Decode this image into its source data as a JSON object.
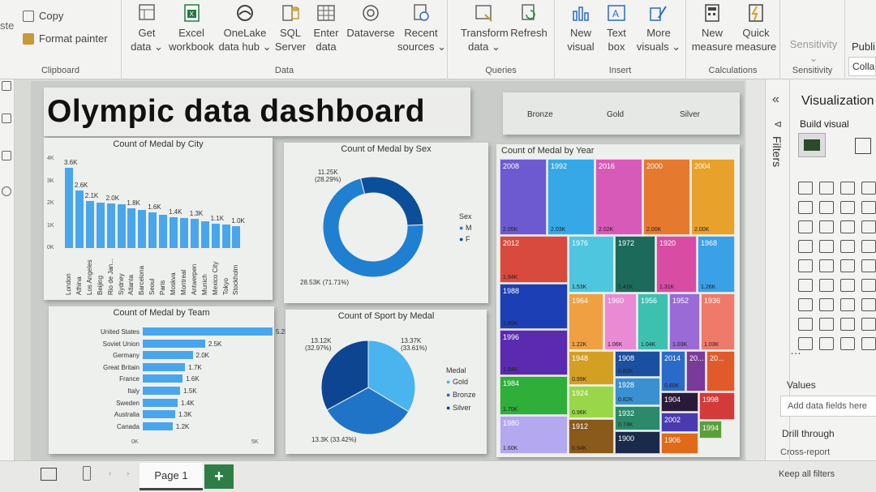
{
  "ribbon": {
    "clipboard": {
      "copy": "Copy",
      "format_painter": "Format painter",
      "label": "Clipboard",
      "paste_partial": "ste"
    },
    "data": {
      "get_data": [
        "Get",
        "data ⌄"
      ],
      "excel": [
        "Excel",
        "workbook"
      ],
      "onelake": [
        "OneLake",
        "data hub ⌄"
      ],
      "sql": [
        "SQL",
        "Server"
      ],
      "enter": [
        "Enter",
        "data"
      ],
      "dataverse": [
        "Dataverse",
        ""
      ],
      "recent": [
        "Recent",
        "sources ⌄"
      ],
      "label": "Data"
    },
    "queries": {
      "transform": [
        "Transform",
        "data ⌄"
      ],
      "refresh": [
        "Refresh",
        ""
      ],
      "label": "Queries"
    },
    "insert": {
      "new_visual": [
        "New",
        "visual"
      ],
      "text_box": [
        "Text",
        "box"
      ],
      "more_visuals": [
        "More",
        "visuals ⌄"
      ],
      "label": "Insert"
    },
    "calculations": {
      "new_measure": [
        "New",
        "measure"
      ],
      "quick_measure": [
        "Quick",
        "measure"
      ],
      "label": "Calculations"
    },
    "sensitivity": {
      "btn": [
        "Sensitivity",
        "⌄"
      ],
      "label": "Sensitivity"
    },
    "publish_partial": "Publi",
    "collapse_partial": "Colla"
  },
  "dashboard": {
    "title": "Olympic data dashboard",
    "slicer": [
      "Bronze",
      "Gold",
      "Silver"
    ]
  },
  "city_chart": {
    "title": "Count of Medal by City",
    "yticks": [
      "4K",
      "3K",
      "2K",
      "1K",
      "0K"
    ],
    "bars": [
      {
        "label": "London",
        "value": 3.6,
        "text": "3.6K"
      },
      {
        "label": "Athina",
        "value": 2.6,
        "text": "2.6K"
      },
      {
        "label": "Los Angeles",
        "value": 2.1,
        "text": "2.1K"
      },
      {
        "label": "Beijing",
        "value": 2.05,
        "text": ""
      },
      {
        "label": "Rio de Jan...",
        "value": 2.0,
        "text": "2.0K"
      },
      {
        "label": "Sydney",
        "value": 1.95,
        "text": ""
      },
      {
        "label": "Atlanta",
        "value": 1.8,
        "text": "1.8K"
      },
      {
        "label": "Barcelona",
        "value": 1.7,
        "text": ""
      },
      {
        "label": "Seoul",
        "value": 1.6,
        "text": "1.6K"
      },
      {
        "label": "Paris",
        "value": 1.5,
        "text": ""
      },
      {
        "label": "Moskva",
        "value": 1.4,
        "text": "1.4K"
      },
      {
        "label": "Montreal",
        "value": 1.35,
        "text": ""
      },
      {
        "label": "Antwerpen",
        "value": 1.3,
        "text": "1.3K"
      },
      {
        "label": "Munich",
        "value": 1.2,
        "text": ""
      },
      {
        "label": "Mexico City",
        "value": 1.1,
        "text": "1.1K"
      },
      {
        "label": "Tokyo",
        "value": 1.05,
        "text": ""
      },
      {
        "label": "Stockholm",
        "value": 1.0,
        "text": "1.0K"
      }
    ]
  },
  "sex_chart": {
    "title": "Count of Medal by Sex",
    "label_f": "11.25K\n(28.29%)",
    "label_m": "28.53K (71.71%)",
    "legend_title": "Sex",
    "legend": [
      "M",
      "F"
    ],
    "colors": [
      "#1f7fd1",
      "#0b4f9a"
    ]
  },
  "year_chart": {
    "title": "Count of Medal by Year",
    "tiles": [
      {
        "y": "2008",
        "v": "2.05K",
        "c": "#6d5ad0"
      },
      {
        "y": "1992",
        "v": "2.03K",
        "c": "#36a8e8"
      },
      {
        "y": "2016",
        "v": "2.02K",
        "c": "#d85ab8"
      },
      {
        "y": "2000",
        "v": "2.00K",
        "c": "#e57a2e"
      },
      {
        "y": "2004",
        "v": "2.00K",
        "c": "#e8a12a"
      },
      {
        "y": "2012",
        "v": "1.94K",
        "c": "#d84a3e"
      },
      {
        "y": "1976",
        "v": "1.53K",
        "c": "#4fc6e0"
      },
      {
        "y": "1972",
        "v": "1.41K",
        "c": "#1c6b5a"
      },
      {
        "y": "1920",
        "v": "1.31K",
        "c": "#d94ca4"
      },
      {
        "y": "1968",
        "v": "1.26K",
        "c": "#3aa0e8"
      },
      {
        "y": "1988",
        "v": "1.85K",
        "c": "#1d3fb5"
      },
      {
        "y": "1964",
        "v": "1.22K",
        "c": "#f0a040"
      },
      {
        "y": "1960",
        "v": "1.06K",
        "c": "#e88ad4"
      },
      {
        "y": "1956",
        "v": "1.04K",
        "c": "#3cc0b0"
      },
      {
        "y": "1952",
        "v": "1.03K",
        "c": "#9a6ad6"
      },
      {
        "y": "1936",
        "v": "1.03K",
        "c": "#f07a6a"
      },
      {
        "y": "1996",
        "v": "1.84K",
        "c": "#5a2ab0"
      },
      {
        "y": "1948",
        "v": "0.99K",
        "c": "#d4a024"
      },
      {
        "y": "1908",
        "v": "0.82K",
        "c": "#1b4fa0"
      },
      {
        "y": "2014",
        "v": "0.60K",
        "c": "#2a6ac8"
      },
      {
        "y": "20...",
        "v": "",
        "c": "#7a3a9a"
      },
      {
        "y": "20...",
        "v": "",
        "c": "#e05a2a"
      },
      {
        "y": "1984",
        "v": "1.70K",
        "c": "#2fae3a"
      },
      {
        "y": "1924",
        "v": "0.96K",
        "c": "#9ad64a"
      },
      {
        "y": "1928",
        "v": "0.82K",
        "c": "#3a90d0"
      },
      {
        "y": "1904",
        "v": "",
        "c": "#2a1a3a"
      },
      {
        "y": "1998",
        "v": "",
        "c": "#d43a3a"
      },
      {
        "y": "1932",
        "v": "0.74K",
        "c": "#2a8a6a"
      },
      {
        "y": "2002",
        "v": "",
        "c": "#4a3ab0"
      },
      {
        "y": "1994",
        "v": "",
        "c": "#5aa03a"
      },
      {
        "y": "1980",
        "v": "1.60K",
        "c": "#b4a8f0"
      },
      {
        "y": "1912",
        "v": "0.94K",
        "c": "#8a5a1a"
      },
      {
        "y": "1900",
        "v": "",
        "c": "#1a2a4a"
      },
      {
        "y": "1906",
        "v": "",
        "c": "#e06a1a"
      }
    ]
  },
  "team_chart": {
    "title": "Count of Medal by Team",
    "xticks": [
      "0K",
      "5K"
    ],
    "bars": [
      {
        "label": "United States",
        "value": 5.2,
        "text": "5.2K"
      },
      {
        "label": "Soviet Union",
        "value": 2.5,
        "text": "2.5K"
      },
      {
        "label": "Germany",
        "value": 2.0,
        "text": "2.0K"
      },
      {
        "label": "Great Britain",
        "value": 1.7,
        "text": "1.7K"
      },
      {
        "label": "France",
        "value": 1.6,
        "text": "1.6K"
      },
      {
        "label": "Italy",
        "value": 1.5,
        "text": "1.5K"
      },
      {
        "label": "Sweden",
        "value": 1.4,
        "text": "1.4K"
      },
      {
        "label": "Australia",
        "value": 1.3,
        "text": "1.3K"
      },
      {
        "label": "Canada",
        "value": 1.2,
        "text": "1.2K"
      }
    ]
  },
  "sport_chart": {
    "title": "Count of Sport by Medal",
    "label_gold": "13.37K\n(33.61%)",
    "label_silver": "13.12K\n(32.97%)",
    "label_bronze": "13.3K (33.42%)",
    "legend_title": "Medal",
    "legend": [
      "Gold",
      "Bronze",
      "Silver"
    ],
    "colors": [
      "#4ab4ee",
      "#1f74c8",
      "#0d4592"
    ]
  },
  "right_pane": {
    "filters": "Filters",
    "viz_title": "Visualization",
    "build_visual": "Build visual",
    "values": "Values",
    "add_fields": "Add data fields here",
    "drill_through": "Drill through",
    "cross_report": "Cross-report",
    "keep_filters": "Keep all filters"
  },
  "bottom": {
    "page": "Page 1",
    "add": "+"
  }
}
